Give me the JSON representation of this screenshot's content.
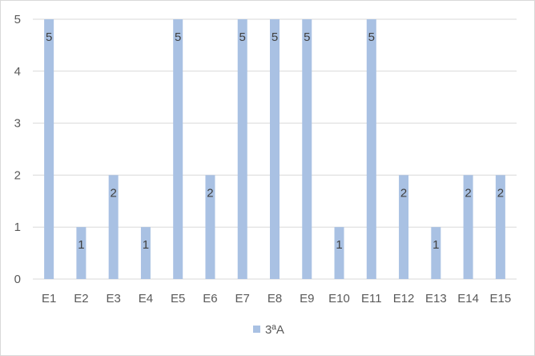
{
  "chart_data": {
    "type": "bar",
    "categories": [
      "E1",
      "E2",
      "E3",
      "E4",
      "E5",
      "E6",
      "E7",
      "E8",
      "E9",
      "E10",
      "E11",
      "E12",
      "E13",
      "E14",
      "E15"
    ],
    "series": [
      {
        "name": "3ªA",
        "values": [
          5,
          1,
          2,
          1,
          5,
          2,
          5,
          5,
          5,
          1,
          5,
          2,
          1,
          2,
          2
        ],
        "color": "#a9c1e3"
      }
    ],
    "ylim": [
      0,
      5
    ],
    "yticks": [
      "0",
      "1",
      "2",
      "3",
      "4",
      "5"
    ],
    "grid": true,
    "gridColor": "#d9d9d9",
    "legend": "bottom",
    "data_labels": true
  }
}
